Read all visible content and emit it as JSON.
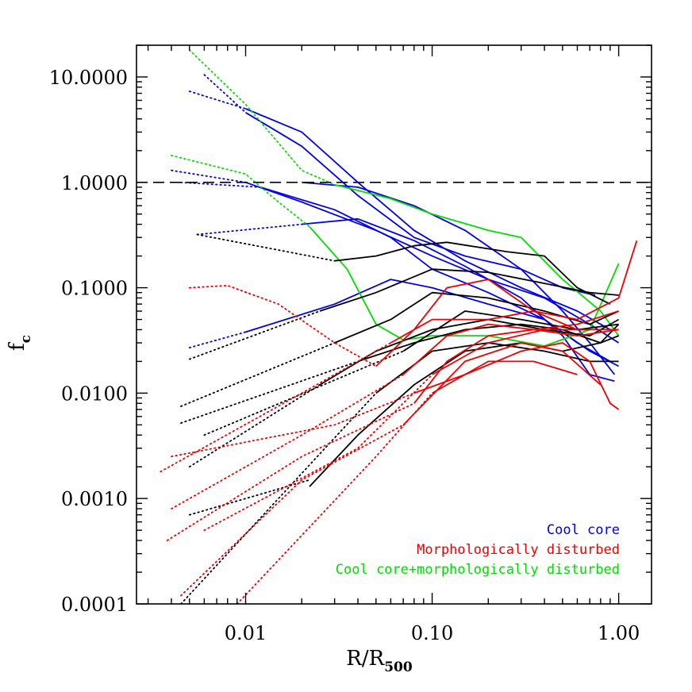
{
  "chart_data": {
    "type": "line",
    "x_scale": "log",
    "y_scale": "log",
    "xlim": [
      0.0026,
      1.5
    ],
    "ylim": [
      0.0001,
      20
    ],
    "xlabel": "R/R",
    "xlabel_sub": "500",
    "ylabel": "f",
    "ylabel_sub": "c",
    "x_ticks": [
      {
        "value": 0.01,
        "label": "0.01"
      },
      {
        "value": 0.1,
        "label": "0.10"
      },
      {
        "value": 1,
        "label": "1.00"
      }
    ],
    "y_ticks": [
      {
        "value": 0.0001,
        "label": "0.0001"
      },
      {
        "value": 0.001,
        "label": "0.0010"
      },
      {
        "value": 0.01,
        "label": "0.0100"
      },
      {
        "value": 0.1,
        "label": "0.1000"
      },
      {
        "value": 1,
        "label": "1.0000"
      },
      {
        "value": 10,
        "label": "10.0000"
      }
    ],
    "reference_line": {
      "y": 1.0,
      "style": "dashed"
    },
    "categories": [
      {
        "name": "Cool core",
        "color": "#0000ee"
      },
      {
        "name": "Morphologically disturbed",
        "color": "#ee0000"
      },
      {
        "name": "Cool core+morphologically disturbed",
        "color": "#00dd00"
      }
    ],
    "default_color": "#000000",
    "legend_position": "bottom-right",
    "series": [
      {
        "group": "cool-core",
        "color": "#0000ee",
        "dotted": [
          [
            0.006,
            10.5
          ],
          [
            0.01,
            4.6
          ]
        ],
        "solid": [
          [
            0.01,
            4.6
          ],
          [
            0.02,
            2.2
          ],
          [
            0.04,
            0.75
          ],
          [
            0.08,
            0.3
          ],
          [
            0.15,
            0.2
          ],
          [
            0.3,
            0.15
          ],
          [
            0.5,
            0.1
          ],
          [
            0.75,
            0.085
          ]
        ]
      },
      {
        "group": "cool-core",
        "color": "#0000ee",
        "dotted": [
          [
            0.005,
            7.3
          ],
          [
            0.01,
            5.0
          ]
        ],
        "solid": [
          [
            0.01,
            5.0
          ],
          [
            0.02,
            3.0
          ],
          [
            0.04,
            1.0
          ],
          [
            0.08,
            0.35
          ],
          [
            0.15,
            0.18
          ],
          [
            0.3,
            0.1
          ],
          [
            0.6,
            0.06
          ],
          [
            0.9,
            0.04
          ]
        ]
      },
      {
        "group": "cool-core",
        "color": "#0000ee",
        "dotted": [
          [
            0.004,
            1.3
          ],
          [
            0.01,
            1.0
          ]
        ],
        "solid": [
          [
            0.01,
            1.0
          ],
          [
            0.02,
            0.65
          ],
          [
            0.05,
            0.35
          ],
          [
            0.1,
            0.2
          ],
          [
            0.2,
            0.12
          ],
          [
            0.4,
            0.08
          ],
          [
            0.7,
            0.045
          ],
          [
            1.0,
            0.03
          ]
        ]
      },
      {
        "group": "cool-core",
        "color": "#0000ee",
        "dotted": [
          [
            0.0045,
            1.0
          ],
          [
            0.012,
            0.9
          ]
        ],
        "solid": [
          [
            0.012,
            0.9
          ],
          [
            0.03,
            0.55
          ],
          [
            0.06,
            0.3
          ],
          [
            0.1,
            0.15
          ],
          [
            0.2,
            0.09
          ],
          [
            0.4,
            0.05
          ],
          [
            0.7,
            0.025
          ],
          [
            1.0,
            0.018
          ]
        ]
      },
      {
        "group": "cool-core",
        "color": "#0000ee",
        "dotted": [
          [
            0.0055,
            0.32
          ],
          [
            0.02,
            0.4
          ]
        ],
        "solid": [
          [
            0.02,
            0.4
          ],
          [
            0.04,
            0.45
          ],
          [
            0.08,
            0.28
          ],
          [
            0.15,
            0.16
          ],
          [
            0.3,
            0.08
          ],
          [
            0.5,
            0.035
          ],
          [
            0.7,
            0.015
          ],
          [
            0.95,
            0.013
          ]
        ]
      },
      {
        "group": "cool-core",
        "color": "#0000ee",
        "dotted": [
          [
            0.005,
            0.027
          ],
          [
            0.01,
            0.038
          ]
        ],
        "solid": [
          [
            0.01,
            0.038
          ],
          [
            0.03,
            0.07
          ],
          [
            0.06,
            0.12
          ],
          [
            0.1,
            0.1
          ],
          [
            0.2,
            0.07
          ],
          [
            0.4,
            0.05
          ],
          [
            0.6,
            0.03
          ],
          [
            0.9,
            0.02
          ]
        ]
      },
      {
        "group": "cool-core",
        "color": "#0000ee",
        "dotted": [],
        "solid": [
          [
            0.02,
            1.0
          ],
          [
            0.04,
            0.9
          ],
          [
            0.08,
            0.6
          ],
          [
            0.15,
            0.35
          ],
          [
            0.3,
            0.15
          ],
          [
            0.5,
            0.06
          ],
          [
            0.7,
            0.03
          ],
          [
            0.95,
            0.015
          ]
        ]
      },
      {
        "group": "cool-disturbed",
        "color": "#00dd00",
        "dotted": [
          [
            0.005,
            18
          ],
          [
            0.01,
            5.5
          ],
          [
            0.02,
            1.3
          ],
          [
            0.03,
            0.95
          ]
        ],
        "solid": [
          [
            0.03,
            0.95
          ],
          [
            0.06,
            0.7
          ],
          [
            0.1,
            0.5
          ],
          [
            0.2,
            0.35
          ],
          [
            0.3,
            0.3
          ],
          [
            0.5,
            0.12
          ],
          [
            0.8,
            0.06
          ],
          [
            1.0,
            0.035
          ]
        ]
      },
      {
        "group": "cool-disturbed",
        "color": "#00dd00",
        "dotted": [
          [
            0.004,
            1.8
          ],
          [
            0.01,
            1.2
          ],
          [
            0.015,
            0.65
          ],
          [
            0.022,
            0.38
          ]
        ],
        "solid": [
          [
            0.022,
            0.38
          ],
          [
            0.035,
            0.15
          ],
          [
            0.05,
            0.045
          ],
          [
            0.07,
            0.032
          ],
          [
            0.1,
            0.035
          ],
          [
            0.2,
            0.035
          ],
          [
            0.4,
            0.028
          ],
          [
            0.7,
            0.04
          ],
          [
            1.0,
            0.17
          ]
        ]
      },
      {
        "group": "other",
        "color": "#000000",
        "dotted": [
          [
            0.0055,
            0.32
          ],
          [
            0.03,
            0.18
          ]
        ],
        "solid": [
          [
            0.03,
            0.18
          ],
          [
            0.05,
            0.2
          ],
          [
            0.08,
            0.25
          ],
          [
            0.12,
            0.27
          ],
          [
            0.25,
            0.22
          ],
          [
            0.4,
            0.2
          ],
          [
            0.6,
            0.1
          ],
          [
            0.9,
            0.07
          ]
        ]
      },
      {
        "group": "other",
        "color": "#000000",
        "dotted": [
          [
            0.005,
            0.021
          ],
          [
            0.025,
            0.06
          ]
        ],
        "solid": [
          [
            0.025,
            0.06
          ],
          [
            0.05,
            0.09
          ],
          [
            0.1,
            0.15
          ],
          [
            0.2,
            0.14
          ],
          [
            0.4,
            0.11
          ],
          [
            0.7,
            0.09
          ],
          [
            1.0,
            0.085
          ]
        ]
      },
      {
        "group": "other",
        "color": "#000000",
        "dotted": [
          [
            0.0045,
            0.0075
          ],
          [
            0.03,
            0.03
          ]
        ],
        "solid": [
          [
            0.03,
            0.03
          ],
          [
            0.06,
            0.05
          ],
          [
            0.1,
            0.09
          ],
          [
            0.2,
            0.08
          ],
          [
            0.4,
            0.06
          ],
          [
            0.7,
            0.045
          ],
          [
            1.0,
            0.06
          ]
        ]
      },
      {
        "group": "other",
        "color": "#000000",
        "dotted": [
          [
            0.0045,
            0.0052
          ],
          [
            0.04,
            0.02
          ]
        ],
        "solid": [
          [
            0.04,
            0.02
          ],
          [
            0.08,
            0.03
          ],
          [
            0.15,
            0.04
          ],
          [
            0.3,
            0.045
          ],
          [
            0.5,
            0.04
          ],
          [
            0.8,
            0.03
          ],
          [
            1.0,
            0.045
          ]
        ]
      },
      {
        "group": "other",
        "color": "#000000",
        "dotted": [
          [
            0.005,
            0.002
          ],
          [
            0.025,
            0.012
          ]
        ],
        "solid": [
          [
            0.025,
            0.012
          ],
          [
            0.05,
            0.025
          ],
          [
            0.1,
            0.04
          ],
          [
            0.2,
            0.05
          ],
          [
            0.4,
            0.04
          ],
          [
            0.7,
            0.035
          ],
          [
            1.0,
            0.05
          ]
        ]
      },
      {
        "group": "other",
        "color": "#000000",
        "dotted": [
          [
            0.005,
            0.0007
          ],
          [
            0.022,
            0.0015
          ]
        ],
        "solid": [
          [
            0.022,
            0.0013
          ],
          [
            0.04,
            0.004
          ],
          [
            0.08,
            0.012
          ],
          [
            0.15,
            0.025
          ],
          [
            0.3,
            0.03
          ],
          [
            0.5,
            0.025
          ],
          [
            0.8,
            0.03
          ],
          [
            1.0,
            0.035
          ]
        ]
      },
      {
        "group": "other",
        "color": "#000000",
        "dotted": [
          [
            0.0045,
            0.0001
          ],
          [
            0.05,
            0.01
          ]
        ],
        "solid": [
          [
            0.05,
            0.01
          ],
          [
            0.1,
            0.025
          ],
          [
            0.2,
            0.03
          ],
          [
            0.4,
            0.025
          ],
          [
            0.7,
            0.02
          ],
          [
            1.0,
            0.02
          ]
        ]
      },
      {
        "group": "other",
        "color": "#000000",
        "dotted": [
          [
            0.006,
            0.004
          ],
          [
            0.07,
            0.025
          ]
        ],
        "solid": [
          [
            0.07,
            0.025
          ],
          [
            0.15,
            0.06
          ],
          [
            0.3,
            0.05
          ],
          [
            0.6,
            0.04
          ],
          [
            1.0,
            0.045
          ]
        ]
      },
      {
        "group": "disturbed",
        "color": "#ee0000",
        "dotted": [
          [
            0.005,
            0.1
          ],
          [
            0.008,
            0.105
          ],
          [
            0.015,
            0.07
          ],
          [
            0.03,
            0.03
          ],
          [
            0.05,
            0.018
          ]
        ],
        "solid": [
          [
            0.05,
            0.018
          ],
          [
            0.08,
            0.04
          ],
          [
            0.12,
            0.1
          ],
          [
            0.2,
            0.12
          ],
          [
            0.35,
            0.06
          ],
          [
            0.6,
            0.04
          ],
          [
            1.0,
            0.04
          ]
        ]
      },
      {
        "group": "disturbed",
        "color": "#ee0000",
        "dotted": [
          [
            0.0035,
            0.0018
          ],
          [
            0.02,
            0.01
          ],
          [
            0.06,
            0.03
          ]
        ],
        "solid": [
          [
            0.06,
            0.03
          ],
          [
            0.1,
            0.05
          ],
          [
            0.2,
            0.05
          ],
          [
            0.35,
            0.06
          ],
          [
            0.6,
            0.05
          ],
          [
            1.0,
            0.08
          ],
          [
            1.25,
            0.28
          ]
        ]
      },
      {
        "group": "disturbed",
        "color": "#ee0000",
        "dotted": [
          [
            0.004,
            0.0008
          ],
          [
            0.02,
            0.004
          ],
          [
            0.07,
            0.015
          ]
        ],
        "solid": [
          [
            0.07,
            0.015
          ],
          [
            0.12,
            0.035
          ],
          [
            0.2,
            0.045
          ],
          [
            0.35,
            0.04
          ],
          [
            0.6,
            0.045
          ],
          [
            1.0,
            0.06
          ]
        ]
      },
      {
        "group": "disturbed",
        "color": "#ee0000",
        "dotted": [
          [
            0.0038,
            0.0004
          ],
          [
            0.02,
            0.0025
          ],
          [
            0.08,
            0.008
          ]
        ],
        "solid": [
          [
            0.08,
            0.008
          ],
          [
            0.12,
            0.02
          ],
          [
            0.2,
            0.035
          ],
          [
            0.35,
            0.04
          ],
          [
            0.6,
            0.035
          ],
          [
            1.0,
            0.04
          ]
        ]
      },
      {
        "group": "disturbed",
        "color": "#ee0000",
        "dotted": [
          [
            0.004,
            0.0025
          ],
          [
            0.03,
            0.005
          ],
          [
            0.08,
            0.01
          ]
        ],
        "solid": [
          [
            0.08,
            0.01
          ],
          [
            0.15,
            0.015
          ],
          [
            0.3,
            0.025
          ],
          [
            0.5,
            0.03
          ],
          [
            0.7,
            0.02
          ],
          [
            0.9,
            0.008
          ],
          [
            1.0,
            0.007
          ]
        ]
      },
      {
        "group": "disturbed",
        "color": "#ee0000",
        "dotted": [
          [
            0.0045,
            0.00012
          ],
          [
            0.02,
            0.0015
          ],
          [
            0.07,
            0.005
          ]
        ],
        "solid": [
          [
            0.07,
            0.005
          ],
          [
            0.15,
            0.02
          ],
          [
            0.3,
            0.03
          ],
          [
            0.5,
            0.025
          ],
          [
            0.8,
            0.012
          ]
        ]
      },
      {
        "group": "disturbed",
        "color": "#ee0000",
        "dotted": [
          [
            0.006,
            0.0005
          ],
          [
            0.04,
            0.003
          ],
          [
            0.1,
            0.015
          ]
        ],
        "solid": [
          [
            0.1,
            0.015
          ],
          [
            0.2,
            0.03
          ],
          [
            0.4,
            0.04
          ],
          [
            0.7,
            0.04
          ]
        ]
      },
      {
        "group": "disturbed",
        "color": "#ee0000",
        "dotted": [
          [
            0.009,
            0.0001
          ],
          [
            0.05,
            0.0025
          ],
          [
            0.1,
            0.01
          ]
        ],
        "solid": [
          [
            0.1,
            0.01
          ],
          [
            0.2,
            0.02
          ],
          [
            0.35,
            0.02
          ],
          [
            0.6,
            0.015
          ]
        ]
      }
    ]
  }
}
